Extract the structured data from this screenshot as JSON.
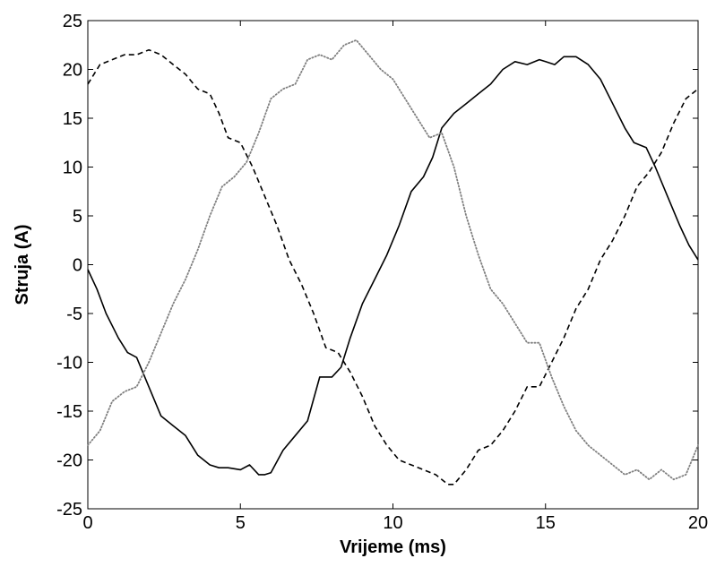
{
  "chart_data": {
    "type": "line",
    "title": "",
    "xlabel": "Vrijeme (ms)",
    "ylabel": "Struja (A)",
    "xlim": [
      0,
      20
    ],
    "ylim": [
      -25,
      25
    ],
    "x_ticks": [
      0,
      5,
      10,
      15,
      20
    ],
    "y_ticks": [
      -25,
      -20,
      -15,
      -10,
      -5,
      0,
      5,
      10,
      15,
      20,
      25
    ],
    "x_tick_labels": [
      "0",
      "5",
      "10",
      "15",
      "20"
    ],
    "y_tick_labels": [
      "-25",
      "-20",
      "-15",
      "-10",
      "-5",
      "0",
      "5",
      "10",
      "15",
      "20",
      "25"
    ],
    "grid": false,
    "legend": "none",
    "series": [
      {
        "style": "solid",
        "color": "#000000",
        "x": [
          0,
          0.3,
          0.6,
          1.0,
          1.3,
          1.6,
          2.0,
          2.4,
          2.8,
          3.2,
          3.6,
          4.0,
          4.3,
          4.6,
          5.0,
          5.3,
          5.6,
          5.8,
          6.0,
          6.4,
          6.8,
          7.2,
          7.6,
          8.0,
          8.3,
          8.6,
          9.0,
          9.4,
          9.8,
          10.2,
          10.6,
          11.0,
          11.3,
          11.6,
          12.0,
          12.4,
          12.8,
          13.2,
          13.6,
          14.0,
          14.4,
          14.8,
          15.0,
          15.3,
          15.6,
          16.0,
          16.4,
          16.8,
          17.2,
          17.6,
          17.9,
          18.3,
          18.6,
          19.0,
          19.4,
          19.7,
          20.0
        ],
        "y": [
          -0.5,
          -2.5,
          -5.0,
          -7.5,
          -9.0,
          -9.5,
          -12.5,
          -15.5,
          -16.5,
          -17.5,
          -19.5,
          -20.5,
          -20.8,
          -20.8,
          -21.0,
          -20.5,
          -21.5,
          -21.5,
          -21.3,
          -19.0,
          -17.5,
          -16.0,
          -11.5,
          -11.5,
          -10.5,
          -7.5,
          -4.0,
          -1.5,
          1.0,
          4.0,
          7.5,
          9.0,
          11.0,
          14.0,
          15.5,
          16.5,
          17.5,
          18.5,
          20.0,
          20.8,
          20.5,
          21.0,
          20.8,
          20.5,
          21.3,
          21.3,
          20.5,
          19.0,
          16.5,
          14.0,
          12.5,
          12.0,
          10.0,
          7.0,
          4.0,
          2.0,
          0.5
        ]
      },
      {
        "style": "dashed",
        "color": "#000000",
        "x": [
          0,
          0.4,
          0.8,
          1.2,
          1.6,
          2.0,
          2.4,
          2.8,
          3.2,
          3.6,
          4.0,
          4.3,
          4.6,
          5.0,
          5.4,
          5.8,
          6.2,
          6.6,
          7.0,
          7.4,
          7.8,
          8.2,
          8.6,
          9.0,
          9.4,
          9.8,
          10.2,
          10.6,
          11.0,
          11.4,
          11.8,
          12.0,
          12.4,
          12.8,
          13.2,
          13.6,
          14.0,
          14.4,
          14.8,
          15.2,
          15.6,
          16.0,
          16.4,
          16.8,
          17.2,
          17.6,
          18.0,
          18.4,
          18.8,
          19.2,
          19.6,
          20.0
        ],
        "y": [
          18.5,
          20.5,
          21.0,
          21.5,
          21.5,
          22.0,
          21.5,
          20.5,
          19.5,
          18.0,
          17.5,
          15.5,
          13.0,
          12.5,
          10.0,
          7.0,
          4.0,
          0.5,
          -2.0,
          -5.0,
          -8.5,
          -9.0,
          -11.0,
          -13.5,
          -16.5,
          -18.5,
          -20.0,
          -20.5,
          -21.0,
          -21.5,
          -22.5,
          -22.5,
          -21.0,
          -19.0,
          -18.5,
          -17.0,
          -15.0,
          -12.5,
          -12.5,
          -10.0,
          -7.5,
          -4.5,
          -2.5,
          0.5,
          2.5,
          5.0,
          8.0,
          9.5,
          11.5,
          14.5,
          17.0,
          18.0
        ]
      },
      {
        "style": "dotted",
        "color": "#808080",
        "x": [
          0,
          0.4,
          0.8,
          1.2,
          1.6,
          2.0,
          2.4,
          2.8,
          3.2,
          3.6,
          4.0,
          4.4,
          4.8,
          5.2,
          5.6,
          6.0,
          6.4,
          6.8,
          7.2,
          7.6,
          8.0,
          8.4,
          8.8,
          9.2,
          9.6,
          10.0,
          10.4,
          10.8,
          11.2,
          11.6,
          12.0,
          12.4,
          12.8,
          13.2,
          13.6,
          14.0,
          14.4,
          14.8,
          15.2,
          15.6,
          16.0,
          16.4,
          16.8,
          17.2,
          17.6,
          18.0,
          18.4,
          18.8,
          19.2,
          19.6,
          20.0
        ],
        "y": [
          -18.5,
          -17.0,
          -14.0,
          -13.0,
          -12.5,
          -10.0,
          -7.0,
          -4.0,
          -1.5,
          1.5,
          5.0,
          8.0,
          9.0,
          10.5,
          13.5,
          17.0,
          18.0,
          18.5,
          21.0,
          21.5,
          21.0,
          22.5,
          23.0,
          21.5,
          20.0,
          19.0,
          17.0,
          15.0,
          13.0,
          13.5,
          10.0,
          5.0,
          1.0,
          -2.5,
          -4.0,
          -6.0,
          -8.0,
          -8.0,
          -11.5,
          -14.5,
          -17.0,
          -18.5,
          -19.5,
          -20.5,
          -21.5,
          -21.0,
          -22.0,
          -21.0,
          -22.0,
          -21.5,
          -18.5
        ]
      }
    ]
  }
}
